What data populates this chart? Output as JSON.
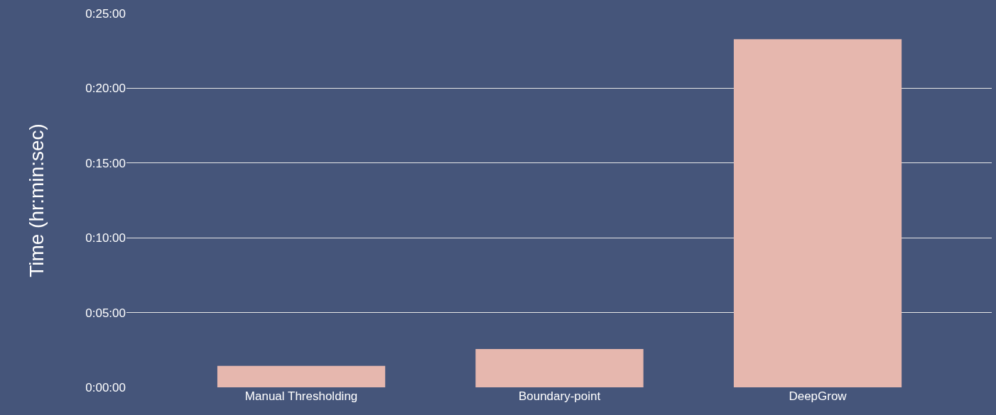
{
  "chart_data": {
    "type": "bar",
    "ylabel": "Time (hr:min:sec)",
    "categories": [
      "Manual Thresholding",
      "Boundary-point",
      "DeepGrow"
    ],
    "values": [
      86,
      154,
      1397
    ],
    "color": "#e6b7ae",
    "ylim": [
      0,
      1500
    ],
    "yticks": [
      {
        "value": 0,
        "label": "0:00:00"
      },
      {
        "value": 300,
        "label": "0:05:00"
      },
      {
        "value": 600,
        "label": "0:10:00"
      },
      {
        "value": 900,
        "label": "0:15:00"
      },
      {
        "value": 1200,
        "label": "0:20:00"
      },
      {
        "value": 1500,
        "label": "0:25:00"
      }
    ],
    "grid": "y"
  }
}
